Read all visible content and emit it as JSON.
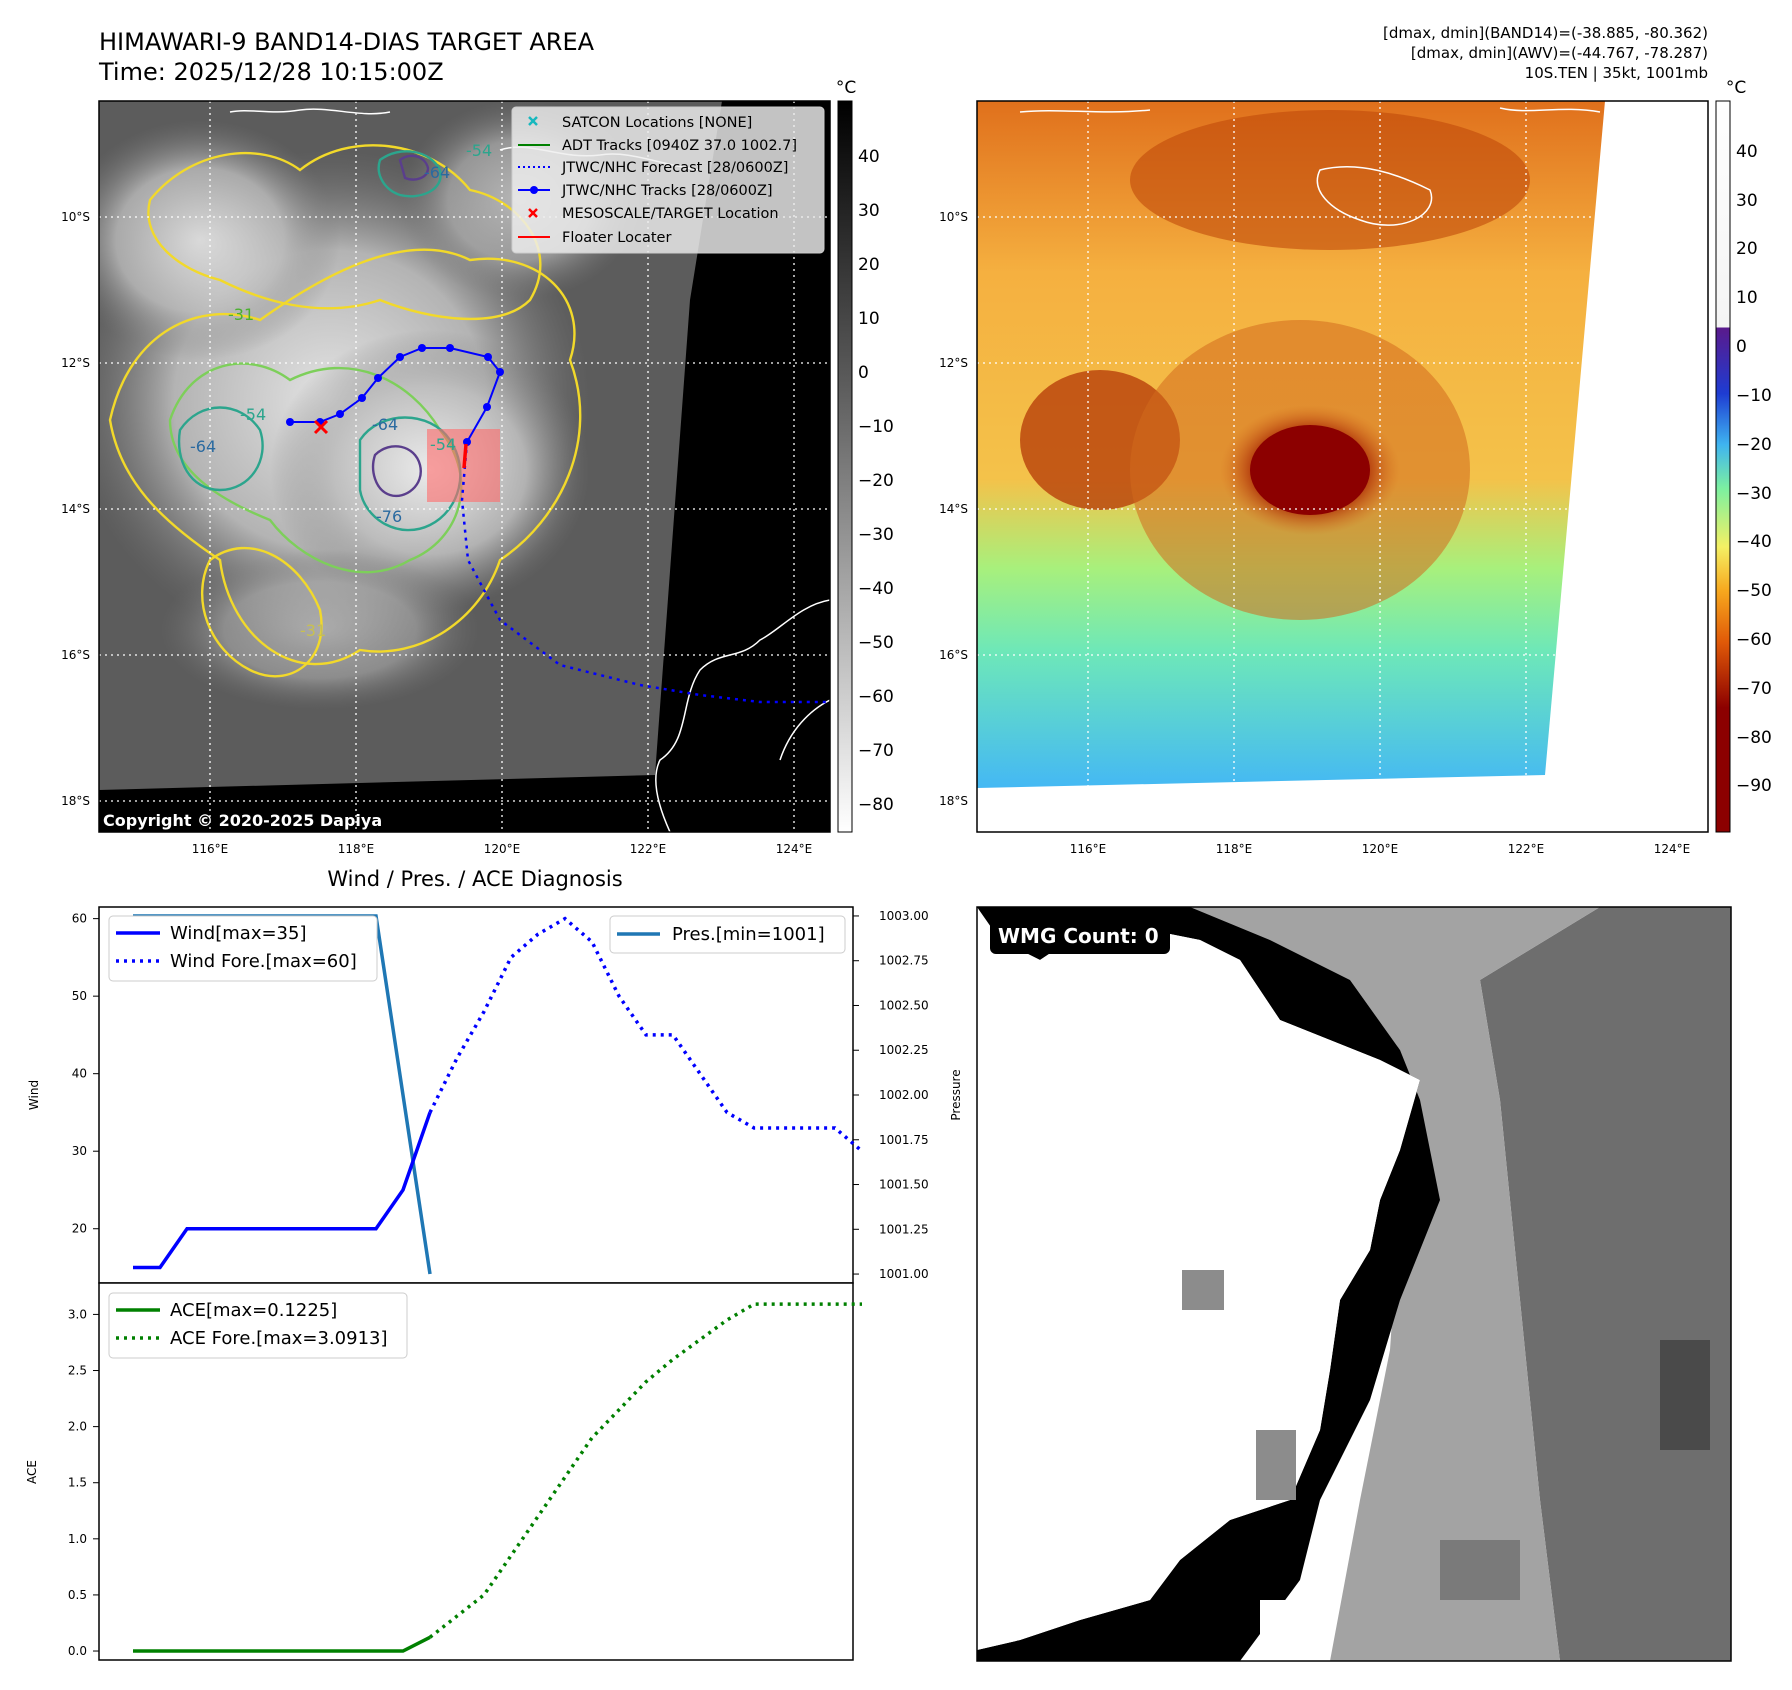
{
  "header": {
    "title_line1": "HIMAWARI-9 BAND14-DIAS TARGET AREA",
    "title_line2": "Time: 2025/12/28 10:15:00Z",
    "info_line1": "[dmax, dmin](BAND14)=(-38.885, -80.362)",
    "info_line2": "[dmax, dmin](AWV)=(-44.767, -78.287)",
    "info_line3": "10S.TEN | 35kt, 1001mb"
  },
  "map": {
    "lat_ticks": [
      "10°S",
      "12°S",
      "14°S",
      "16°S",
      "18°S"
    ],
    "lon_ticks": [
      "116°E",
      "118°E",
      "120°E",
      "122°E",
      "124°E"
    ],
    "copyright": "Copyright © 2020-2025 Dapiya",
    "contour_labels": [
      "-54",
      "-64",
      "-31",
      "-54",
      "-64",
      "-64",
      "-76",
      "-31",
      "-54"
    ],
    "legend": [
      {
        "label": "SATCON Locations [NONE]",
        "color": "#17b8be",
        "marker": "x"
      },
      {
        "label": "ADT Tracks [0940Z 37.0 1002.7]",
        "color": "#008000",
        "marker": "line"
      },
      {
        "label": "JTWC/NHC Forecast [28/0600Z]",
        "color": "#0000ff",
        "marker": "dotted"
      },
      {
        "label": "JTWC/NHC Tracks [28/0600Z]",
        "color": "#0000ff",
        "marker": "line-dot"
      },
      {
        "label": "MESOSCALE/TARGET Location",
        "color": "#ff0000",
        "marker": "x"
      },
      {
        "label": "Floater Locater",
        "color": "#ff0000",
        "marker": "line"
      }
    ]
  },
  "colorbar_gray": {
    "unit": "°C",
    "ticks": [
      "40",
      "30",
      "20",
      "10",
      "0",
      "−10",
      "−20",
      "−30",
      "−40",
      "−50",
      "−60",
      "−70",
      "−80"
    ]
  },
  "colorbar_color": {
    "unit": "°C",
    "ticks": [
      "40",
      "30",
      "20",
      "10",
      "0",
      "−10",
      "−20",
      "−30",
      "−40",
      "−50",
      "−60",
      "−70",
      "−80",
      "−90"
    ]
  },
  "chart_data": [
    {
      "type": "line",
      "title": "Wind / Pres. / ACE Diagnosis",
      "ylabel": "Wind",
      "ylim": [
        13,
        61.5
      ],
      "y_ticks": [
        "20",
        "30",
        "40",
        "50",
        "60"
      ],
      "series": [
        {
          "name": "Wind[max=35]",
          "color": "#0000ff",
          "style": "solid",
          "x": [
            0,
            1,
            2,
            3,
            4,
            5,
            6,
            7,
            8,
            9,
            10,
            11
          ],
          "values": [
            15,
            15,
            20,
            20,
            20,
            20,
            20,
            20,
            20,
            20,
            25,
            35
          ]
        },
        {
          "name": "Wind Fore.[max=60]",
          "color": "#0000ff",
          "style": "dotted",
          "x": [
            11,
            12,
            13,
            14,
            15,
            16,
            17,
            18,
            19,
            20,
            21,
            22,
            23,
            24,
            25,
            26,
            27
          ],
          "values": [
            35,
            42,
            48,
            55,
            58,
            60,
            57,
            50,
            45,
            45,
            40,
            35,
            33,
            33,
            33,
            33,
            30
          ]
        }
      ]
    },
    {
      "type": "line",
      "ylabel": "Pressure",
      "ylim": [
        1000.95,
        1003.05
      ],
      "y_ticks": [
        "1003.00",
        "1002.75",
        "1002.50",
        "1002.25",
        "1002.00",
        "1001.75",
        "1001.50",
        "1001.25",
        "1001.00"
      ],
      "series": [
        {
          "name": "Pres.[min=1001]",
          "color": "#1f77b4",
          "style": "solid",
          "x": [
            0,
            9,
            11
          ],
          "values": [
            1003.0,
            1003.0,
            1001.0
          ]
        }
      ]
    },
    {
      "type": "line",
      "ylabel": "ACE",
      "ylim": [
        -0.08,
        3.28
      ],
      "y_ticks": [
        "0.0",
        "0.5",
        "1.0",
        "1.5",
        "2.0",
        "2.5",
        "3.0"
      ],
      "series": [
        {
          "name": "ACE[max=0.1225]",
          "color": "#008000",
          "style": "solid",
          "x": [
            0,
            10,
            11
          ],
          "values": [
            0,
            0,
            0.1225
          ]
        },
        {
          "name": "ACE Fore.[max=3.0913]",
          "color": "#008000",
          "style": "dotted",
          "x": [
            11,
            13,
            15,
            17,
            19,
            20,
            22,
            23,
            24,
            27
          ],
          "values": [
            0.1225,
            0.5,
            1.2,
            1.9,
            2.4,
            2.6,
            2.95,
            3.0913,
            3.0913,
            3.0913
          ]
        }
      ]
    }
  ],
  "wmg": {
    "label": "WMG Count: 0"
  }
}
